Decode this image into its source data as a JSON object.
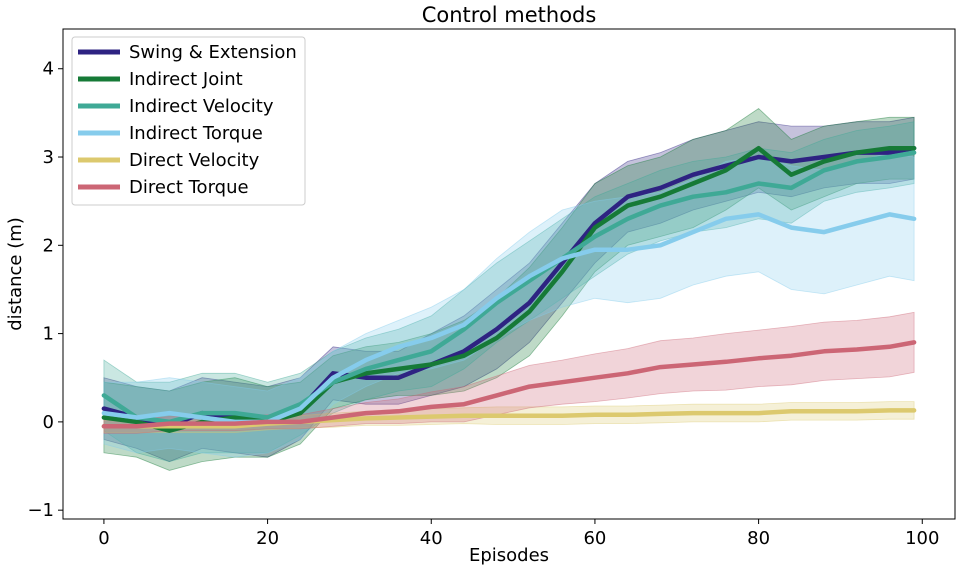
{
  "chart_data": {
    "type": "line",
    "title": "Control methods",
    "xlabel": "Episodes",
    "ylabel": "distance (m)",
    "xlim": [
      -5,
      104
    ],
    "ylim": [
      -1.1,
      4.45
    ],
    "xticks": [
      0,
      20,
      40,
      60,
      80,
      100
    ],
    "yticks": [
      -1,
      0,
      1,
      2,
      3,
      4
    ],
    "xtick_labels": [
      "0",
      "20",
      "40",
      "60",
      "80",
      "100"
    ],
    "ytick_labels": [
      "−1",
      "0",
      "1",
      "2",
      "3",
      "4"
    ],
    "grid": false,
    "legend_position": "top-left",
    "band_note": "shaded region = mean ± spread",
    "series": [
      {
        "name": "Swing & Extension",
        "color": "#2e2382",
        "x": [
          0,
          4,
          8,
          12,
          16,
          20,
          24,
          28,
          32,
          36,
          40,
          44,
          48,
          52,
          56,
          60,
          64,
          68,
          72,
          76,
          80,
          84,
          88,
          92,
          96,
          99
        ],
        "y": [
          0.15,
          0.05,
          -0.05,
          0.1,
          0.05,
          0.0,
          0.15,
          0.55,
          0.5,
          0.5,
          0.65,
          0.8,
          1.05,
          1.35,
          1.8,
          2.25,
          2.55,
          2.65,
          2.8,
          2.9,
          3.0,
          2.95,
          3.0,
          3.05,
          3.05,
          3.1
        ],
        "spread": [
          0.35,
          0.35,
          0.4,
          0.4,
          0.4,
          0.4,
          0.35,
          0.3,
          0.3,
          0.3,
          0.35,
          0.4,
          0.45,
          0.45,
          0.45,
          0.45,
          0.4,
          0.4,
          0.4,
          0.4,
          0.4,
          0.4,
          0.35,
          0.35,
          0.35,
          0.35
        ]
      },
      {
        "name": "Indirect Joint",
        "color": "#167a37",
        "x": [
          0,
          4,
          8,
          12,
          16,
          20,
          24,
          28,
          32,
          36,
          40,
          44,
          48,
          52,
          56,
          60,
          64,
          68,
          72,
          76,
          80,
          84,
          88,
          92,
          96,
          99
        ],
        "y": [
          0.05,
          0.0,
          -0.1,
          0.0,
          0.05,
          0.0,
          0.1,
          0.45,
          0.55,
          0.6,
          0.65,
          0.75,
          0.95,
          1.25,
          1.7,
          2.2,
          2.45,
          2.55,
          2.7,
          2.85,
          3.1,
          2.8,
          2.95,
          3.05,
          3.1,
          3.1
        ],
        "spread": [
          0.4,
          0.4,
          0.45,
          0.45,
          0.45,
          0.4,
          0.35,
          0.3,
          0.3,
          0.3,
          0.35,
          0.4,
          0.45,
          0.5,
          0.5,
          0.5,
          0.45,
          0.45,
          0.5,
          0.45,
          0.45,
          0.4,
          0.4,
          0.35,
          0.35,
          0.35
        ]
      },
      {
        "name": "Indirect Velocity",
        "color": "#3fa996",
        "x": [
          0,
          4,
          8,
          12,
          16,
          20,
          24,
          28,
          32,
          36,
          40,
          44,
          48,
          52,
          56,
          60,
          64,
          68,
          72,
          76,
          80,
          84,
          88,
          92,
          96,
          99
        ],
        "y": [
          0.3,
          0.05,
          0.0,
          0.1,
          0.1,
          0.05,
          0.2,
          0.45,
          0.6,
          0.7,
          0.8,
          1.05,
          1.35,
          1.6,
          1.85,
          2.1,
          2.3,
          2.45,
          2.55,
          2.6,
          2.7,
          2.65,
          2.85,
          2.95,
          3.0,
          3.05
        ],
        "spread": [
          0.4,
          0.4,
          0.45,
          0.45,
          0.45,
          0.4,
          0.35,
          0.35,
          0.35,
          0.35,
          0.4,
          0.45,
          0.45,
          0.45,
          0.45,
          0.45,
          0.4,
          0.4,
          0.4,
          0.4,
          0.4,
          0.4,
          0.35,
          0.35,
          0.35,
          0.35
        ]
      },
      {
        "name": "Indirect Torque",
        "color": "#86ccec",
        "x": [
          0,
          4,
          8,
          12,
          16,
          20,
          24,
          28,
          32,
          36,
          40,
          44,
          48,
          52,
          56,
          60,
          64,
          68,
          72,
          76,
          80,
          84,
          88,
          92,
          96,
          99
        ],
        "y": [
          0.1,
          0.05,
          0.1,
          0.05,
          0.0,
          0.0,
          0.15,
          0.5,
          0.7,
          0.85,
          0.95,
          1.1,
          1.4,
          1.65,
          1.85,
          1.95,
          1.95,
          2.0,
          2.15,
          2.3,
          2.35,
          2.2,
          2.15,
          2.25,
          2.35,
          2.3
        ],
        "spread": [
          0.35,
          0.4,
          0.4,
          0.4,
          0.4,
          0.35,
          0.35,
          0.3,
          0.3,
          0.3,
          0.35,
          0.4,
          0.45,
          0.5,
          0.55,
          0.55,
          0.6,
          0.6,
          0.6,
          0.65,
          0.65,
          0.7,
          0.7,
          0.7,
          0.7,
          0.7
        ]
      },
      {
        "name": "Direct Velocity",
        "color": "#dcc96e",
        "x": [
          0,
          4,
          8,
          12,
          16,
          20,
          24,
          28,
          32,
          36,
          40,
          44,
          48,
          52,
          56,
          60,
          64,
          68,
          72,
          76,
          80,
          84,
          88,
          92,
          96,
          99
        ],
        "y": [
          -0.05,
          -0.05,
          -0.05,
          -0.05,
          -0.05,
          -0.02,
          0.0,
          0.02,
          0.04,
          0.05,
          0.06,
          0.07,
          0.07,
          0.07,
          0.07,
          0.08,
          0.08,
          0.09,
          0.1,
          0.1,
          0.1,
          0.12,
          0.12,
          0.12,
          0.13,
          0.13
        ],
        "spread": [
          0.07,
          0.07,
          0.07,
          0.07,
          0.07,
          0.07,
          0.07,
          0.08,
          0.08,
          0.09,
          0.09,
          0.09,
          0.1,
          0.1,
          0.1,
          0.1,
          0.1,
          0.1,
          0.1,
          0.1,
          0.1,
          0.1,
          0.1,
          0.1,
          0.1,
          0.1
        ]
      },
      {
        "name": "Direct Torque",
        "color": "#cc6675",
        "x": [
          0,
          4,
          8,
          12,
          16,
          20,
          24,
          28,
          32,
          36,
          40,
          44,
          48,
          52,
          56,
          60,
          64,
          68,
          72,
          76,
          80,
          84,
          88,
          92,
          96,
          99
        ],
        "y": [
          -0.05,
          -0.05,
          -0.02,
          -0.02,
          -0.02,
          0.0,
          0.0,
          0.05,
          0.1,
          0.12,
          0.17,
          0.2,
          0.3,
          0.4,
          0.45,
          0.5,
          0.55,
          0.62,
          0.65,
          0.68,
          0.72,
          0.75,
          0.8,
          0.82,
          0.85,
          0.9
        ],
        "spread": [
          0.08,
          0.08,
          0.08,
          0.08,
          0.08,
          0.08,
          0.08,
          0.1,
          0.12,
          0.14,
          0.17,
          0.2,
          0.22,
          0.24,
          0.25,
          0.27,
          0.28,
          0.3,
          0.3,
          0.32,
          0.32,
          0.33,
          0.33,
          0.33,
          0.34,
          0.34
        ]
      }
    ]
  }
}
